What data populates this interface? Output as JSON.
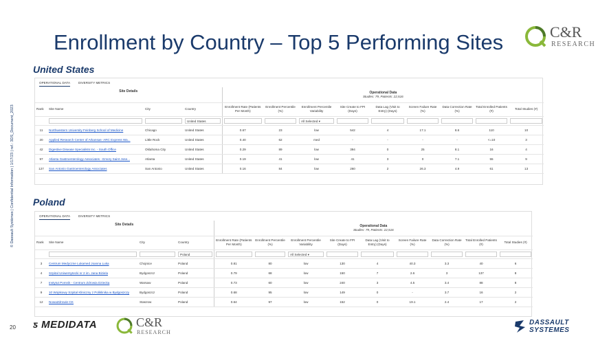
{
  "title": "Enrollment by Country – Top 5 Performing Sites",
  "logo": {
    "name": "C&R",
    "sub": "RESEARCH",
    "badge": "RESEARCH"
  },
  "vertical_note": "© Dassault Systèmes | Confidential Information | 1/17/23 | ref.: 3DS_Document_2023",
  "page_number": "20",
  "footer": {
    "medidata": "MEDIDATA",
    "cr_name": "C&R",
    "cr_sub": "RESEARCH",
    "dassault_1": "DASSAULT",
    "dassault_2": "SYSTEMES"
  },
  "sections": [
    {
      "country": "United States",
      "tabs": [
        "OPERATIONAL DATA",
        "DIVERSITY METRICS"
      ],
      "site_details_label": "Site Details",
      "operational_label": "Operational Data",
      "operational_sub": "Studies: 79, Patients: 22,516",
      "columns": [
        "Rank",
        "Site Name",
        "City",
        "Country",
        "Enrollment Rate (Patients Per Month)",
        "Enrollment Percentile (%)",
        "Enrollment Percentile Variability",
        "Site Create to FPI (Days)",
        "Data Lag (Visit to Entry) (Days)",
        "Screen Failure Rate (%)",
        "Data Correction Rate (%)",
        "Total Enrolled Patients (#)",
        "Total Studies (#)"
      ],
      "filter_country": "United States",
      "filter_variability": "All Selected",
      "rows": [
        [
          "11",
          "Northwestern University Feinberg School of Medicine",
          "Chicago",
          "United States",
          "0.67",
          "23",
          "low",
          "542",
          "4",
          "17.1",
          "8.6",
          "110",
          "10"
        ],
        [
          "20",
          "Applied Research Center of Arkansas- ARC Express Wa...",
          "Little Rock",
          "United States",
          "0.40",
          "62",
          "med",
          "-",
          "-",
          "-",
          "-",
          "<=10",
          "3"
        ],
        [
          "42",
          "Digestive Disease Specialists Inc. - South Office",
          "Oklahoma City",
          "United States",
          "0.29",
          "89",
          "low",
          "394",
          "0",
          "25",
          "8.1",
          "16",
          "4"
        ],
        [
          "97",
          "Atlanta Gastroenterology Associates - Emory Saint Jose...",
          "Atlanta",
          "United States",
          "0.19",
          "41",
          "low",
          "41",
          "3",
          "0",
          "7.1",
          "55",
          "9"
        ],
        [
          "127",
          "San Antonio Gastroenterology Associates",
          "San Antonio",
          "United States",
          "0.16",
          "84",
          "low",
          "260",
          "2",
          "26.3",
          "4.9",
          "61",
          "13"
        ]
      ]
    },
    {
      "country": "Poland",
      "tabs": [
        "OPERATIONAL DATA",
        "DIVERSITY METRICS"
      ],
      "site_details_label": "Site Details",
      "operational_label": "Operational Data",
      "operational_sub": "Studies: 79, Patients: 22,516",
      "columns": [
        "Rank",
        "Site Name",
        "City",
        "Country",
        "Enrollment Rate (Patients Per Month)",
        "Enrollment Percentile (%)",
        "Enrollment Percentile Variability",
        "Site Create to FPI (Days)",
        "Data Lag (Visit to Entry) (Days)",
        "Screen Failure Rate (%)",
        "Data Correction Rate (%)",
        "Total Enrolled Patients (#)",
        "Total Studies (#)"
      ],
      "filter_country": "Poland",
      "filter_variability": "All Selected",
      "rows": [
        [
          "3",
          "Centrum Medyczne Lukamed Joanna Luka",
          "Chojnice",
          "Poland",
          "0.81",
          "80",
          "low",
          "130",
          "4",
          "40.3",
          "3.3",
          "40",
          "6"
        ],
        [
          "4",
          "Szpital Uniwersytecki nr 2 im. Jana Biziela",
          "Bydgoszcz",
          "Poland",
          "0.79",
          "68",
          "low",
          "150",
          "7",
          "2.6",
          "3",
          "137",
          "8"
        ],
        [
          "7",
          "Instytut Pomnik - Centrum Zdrowia Dziecka",
          "Warsaw",
          "Poland",
          "0.73",
          "60",
          "low",
          "240",
          "3",
          "4.5",
          "3.4",
          "88",
          "8"
        ],
        [
          "9",
          "10 Wojskowy Szpital Kliniczny z Poliklinika w Bydgoszczy",
          "Bydgoszcz",
          "Poland",
          "0.68",
          "95",
          "low",
          "149",
          "0",
          "-",
          "3.7",
          "16",
          "2"
        ],
        [
          "12",
          "NowaZdrowie-CK",
          "Staszow",
          "Poland",
          "0.64",
          "97",
          "low",
          "152",
          "0",
          "19.1",
          "2.4",
          "17",
          "2"
        ]
      ]
    }
  ]
}
